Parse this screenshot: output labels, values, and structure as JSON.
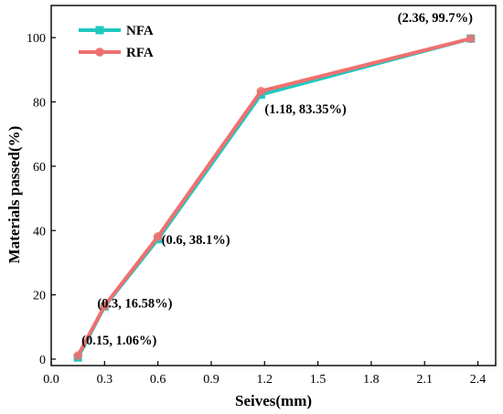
{
  "chart_data": {
    "type": "line",
    "xlabel": "Seives(mm)",
    "ylabel": "Materials passed(%)",
    "xlim": [
      0.0,
      2.5
    ],
    "ylim": [
      -2,
      110
    ],
    "xticks": [
      0.0,
      0.3,
      0.6,
      0.9,
      1.2,
      1.5,
      1.8,
      2.1,
      2.4
    ],
    "xtick_labels": [
      "0.0",
      "0.3",
      "0.6",
      "0.9",
      "1.2",
      "1.5",
      "1.8",
      "2.1",
      "2.4"
    ],
    "yticks": [
      0,
      20,
      40,
      60,
      80,
      100
    ],
    "ytick_labels": [
      "0",
      "20",
      "40",
      "60",
      "80",
      "100"
    ],
    "grid": false,
    "legend_position": "top-left",
    "series": [
      {
        "name": "NFA",
        "color": "#1fc8c0",
        "marker": "square",
        "x": [
          0.15,
          0.3,
          0.6,
          1.18,
          2.36
        ],
        "y": [
          0.5,
          16.4,
          37.3,
          82.3,
          99.7
        ]
      },
      {
        "name": "RFA",
        "color": "#f07070",
        "marker": "circle",
        "x": [
          0.15,
          0.3,
          0.6,
          1.18,
          2.36
        ],
        "y": [
          1.06,
          16.58,
          38.1,
          83.35,
          99.7
        ]
      }
    ],
    "annotations": [
      {
        "text": "(0.15, 1.06%)"
      },
      {
        "text": "(0.3, 16.58%)"
      },
      {
        "text": "(0.6, 38.1%)"
      },
      {
        "text": "(1.18, 83.35%)"
      },
      {
        "text": "(2.36, 99.7%)"
      }
    ]
  }
}
